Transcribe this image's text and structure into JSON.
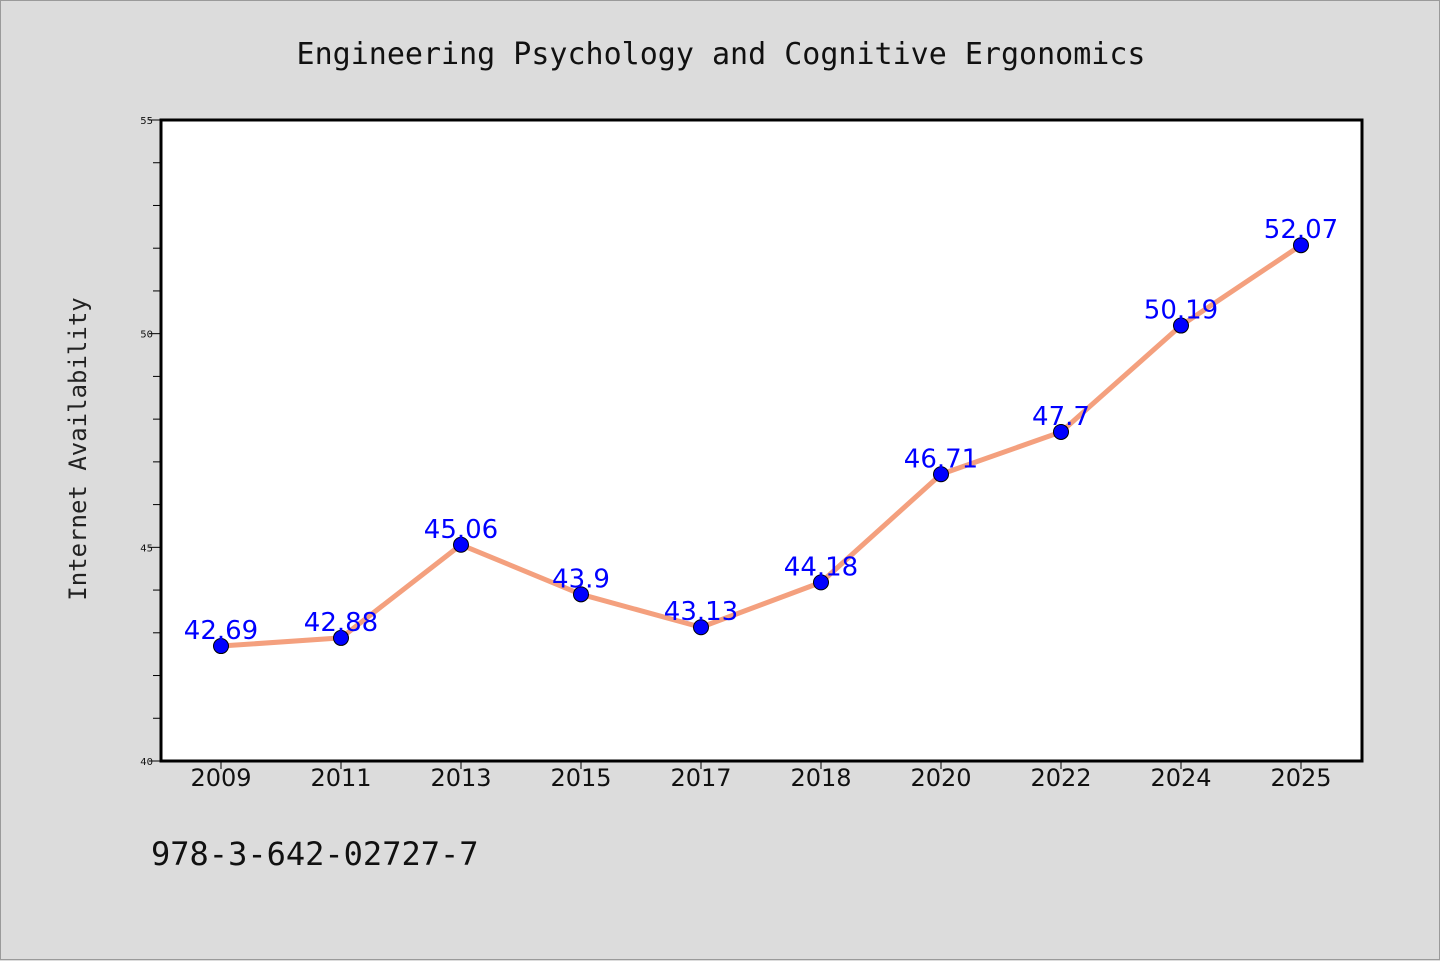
{
  "chart_data": {
    "type": "line",
    "title": "Engineering Psychology and Cognitive Ergonomics",
    "ylabel": "Internet Availability",
    "xlabel": "",
    "categories": [
      "2009",
      "2011",
      "2013",
      "2015",
      "2017",
      "2018",
      "2020",
      "2022",
      "2024",
      "2025"
    ],
    "series": [
      {
        "values": [
          42.69,
          42.88,
          45.06,
          43.9,
          43.13,
          44.18,
          46.71,
          47.7,
          50.19,
          52.07
        ]
      }
    ],
    "data_labels": [
      "42.69",
      "42.88",
      "45.06",
      "43.9",
      "43.13",
      "44.18",
      "46.71",
      "47.7",
      "50.19",
      "52.07"
    ],
    "ylim": [
      40,
      55
    ],
    "yticks": [
      40,
      45,
      50,
      55
    ],
    "grid": false,
    "colors": {
      "line": "#f4a07e",
      "marker": "#0000ff",
      "label": "#0000ff",
      "background": "#dcdcdc",
      "plot_background": "#ffffff"
    }
  },
  "footer": {
    "text": "978-3-642-02727-7"
  }
}
